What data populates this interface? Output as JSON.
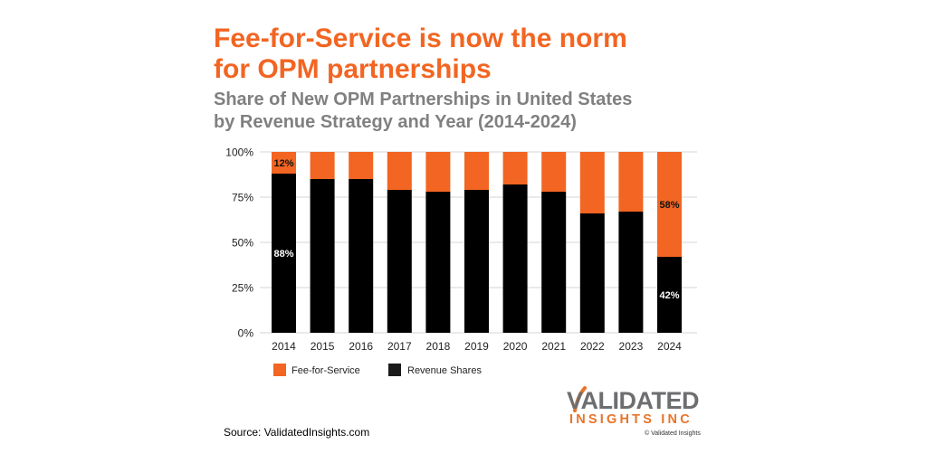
{
  "title_line1": "Fee-for-Service is now the norm",
  "title_line2": "for OPM partnerships",
  "subtitle_line1": "Share of New OPM Partnerships in United States",
  "subtitle_line2": "by Revenue Strategy and Year (2014-2024)",
  "source": "Source: ValidatedInsights.com",
  "logo": {
    "top": "VALIDATED",
    "bottom": "INSIGHTS INC"
  },
  "copyright": "© Validated Insights",
  "colors": {
    "fee": "#F26522",
    "revenue": "#000000",
    "grid": "#e3e3e3",
    "title": "#F26522",
    "subtitle": "#808080"
  },
  "chart_data": {
    "type": "bar",
    "stacked": true,
    "title": "Share of New OPM Partnerships in United States by Revenue Strategy and Year (2014-2024)",
    "xlabel": "",
    "ylabel": "",
    "ylim": [
      0,
      100
    ],
    "yticks": [
      0,
      25,
      50,
      75,
      100
    ],
    "ytick_labels": [
      "0%",
      "25%",
      "50%",
      "75%",
      "100%"
    ],
    "grid": true,
    "legend_position": "bottom-left",
    "categories": [
      "2014",
      "2015",
      "2016",
      "2017",
      "2018",
      "2019",
      "2020",
      "2021",
      "2022",
      "2023",
      "2024"
    ],
    "series": [
      {
        "name": "Revenue Shares",
        "color": "#000000",
        "values": [
          88,
          85,
          85,
          79,
          78,
          79,
          82,
          78,
          66,
          67,
          42
        ]
      },
      {
        "name": "Fee-for-Service",
        "color": "#F26522",
        "values": [
          12,
          15,
          15,
          21,
          22,
          21,
          18,
          22,
          34,
          33,
          58
        ]
      }
    ],
    "data_labels": [
      {
        "series": "Fee-for-Service",
        "category": "2014",
        "text": "12%"
      },
      {
        "series": "Revenue Shares",
        "category": "2014",
        "text": "88%"
      },
      {
        "series": "Fee-for-Service",
        "category": "2024",
        "text": "58%"
      },
      {
        "series": "Revenue Shares",
        "category": "2024",
        "text": "42%"
      }
    ],
    "legend": [
      "Fee-for-Service",
      "Revenue Shares"
    ]
  }
}
